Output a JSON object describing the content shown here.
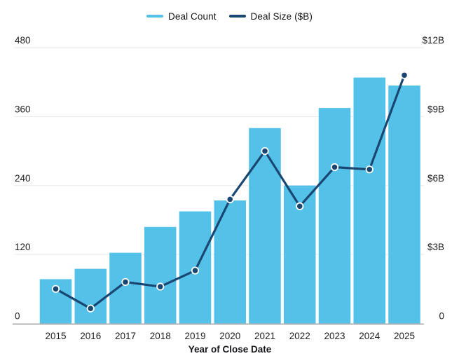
{
  "legend": {
    "items": [
      {
        "label": "Deal Count",
        "color": "#53C1E8",
        "series_type": "bar"
      },
      {
        "label": "Deal Size ($B)",
        "color": "#1A4672",
        "series_type": "line"
      }
    ]
  },
  "chart_data": {
    "type": "bar",
    "subtype": "combo-bar-line-dual-axis",
    "categories": [
      "2015",
      "2016",
      "2017",
      "2018",
      "2019",
      "2020",
      "2021",
      "2022",
      "2023",
      "2024",
      "2025"
    ],
    "series": [
      {
        "name": "Deal Count",
        "type": "bar",
        "axis": "left",
        "color": "#53C1E8",
        "values": [
          77,
          95,
          123,
          168,
          195,
          214,
          340,
          240,
          375,
          428,
          414
        ]
      },
      {
        "name": "Deal Size ($B)",
        "type": "line",
        "axis": "right",
        "color": "#1A4672",
        "values": [
          1.5,
          0.65,
          1.8,
          1.6,
          2.3,
          5.4,
          7.5,
          5.1,
          6.8,
          6.7,
          10.8
        ]
      }
    ],
    "title": "",
    "xlabel": "Year of Close Date",
    "left_axis": {
      "min": 0,
      "max": 480,
      "tick_values": [
        0,
        120,
        240,
        360,
        480
      ],
      "tick_labels": [
        "0",
        "120",
        "240",
        "360",
        "480"
      ]
    },
    "right_axis": {
      "min": 0,
      "max": 12,
      "tick_values": [
        0,
        3,
        6,
        9,
        12
      ],
      "tick_labels": [
        "0",
        "$3B",
        "$6B",
        "$9B",
        "$12B"
      ]
    },
    "grid": true,
    "legend_position": "top-center",
    "colors": {
      "bar": "#53C1E8",
      "line": "#1A4672",
      "gridline": "#E9E9E9",
      "axis_line": "#B5B5B5",
      "text": "#1E1D21",
      "marker_ring": "#FFFFFF"
    }
  }
}
